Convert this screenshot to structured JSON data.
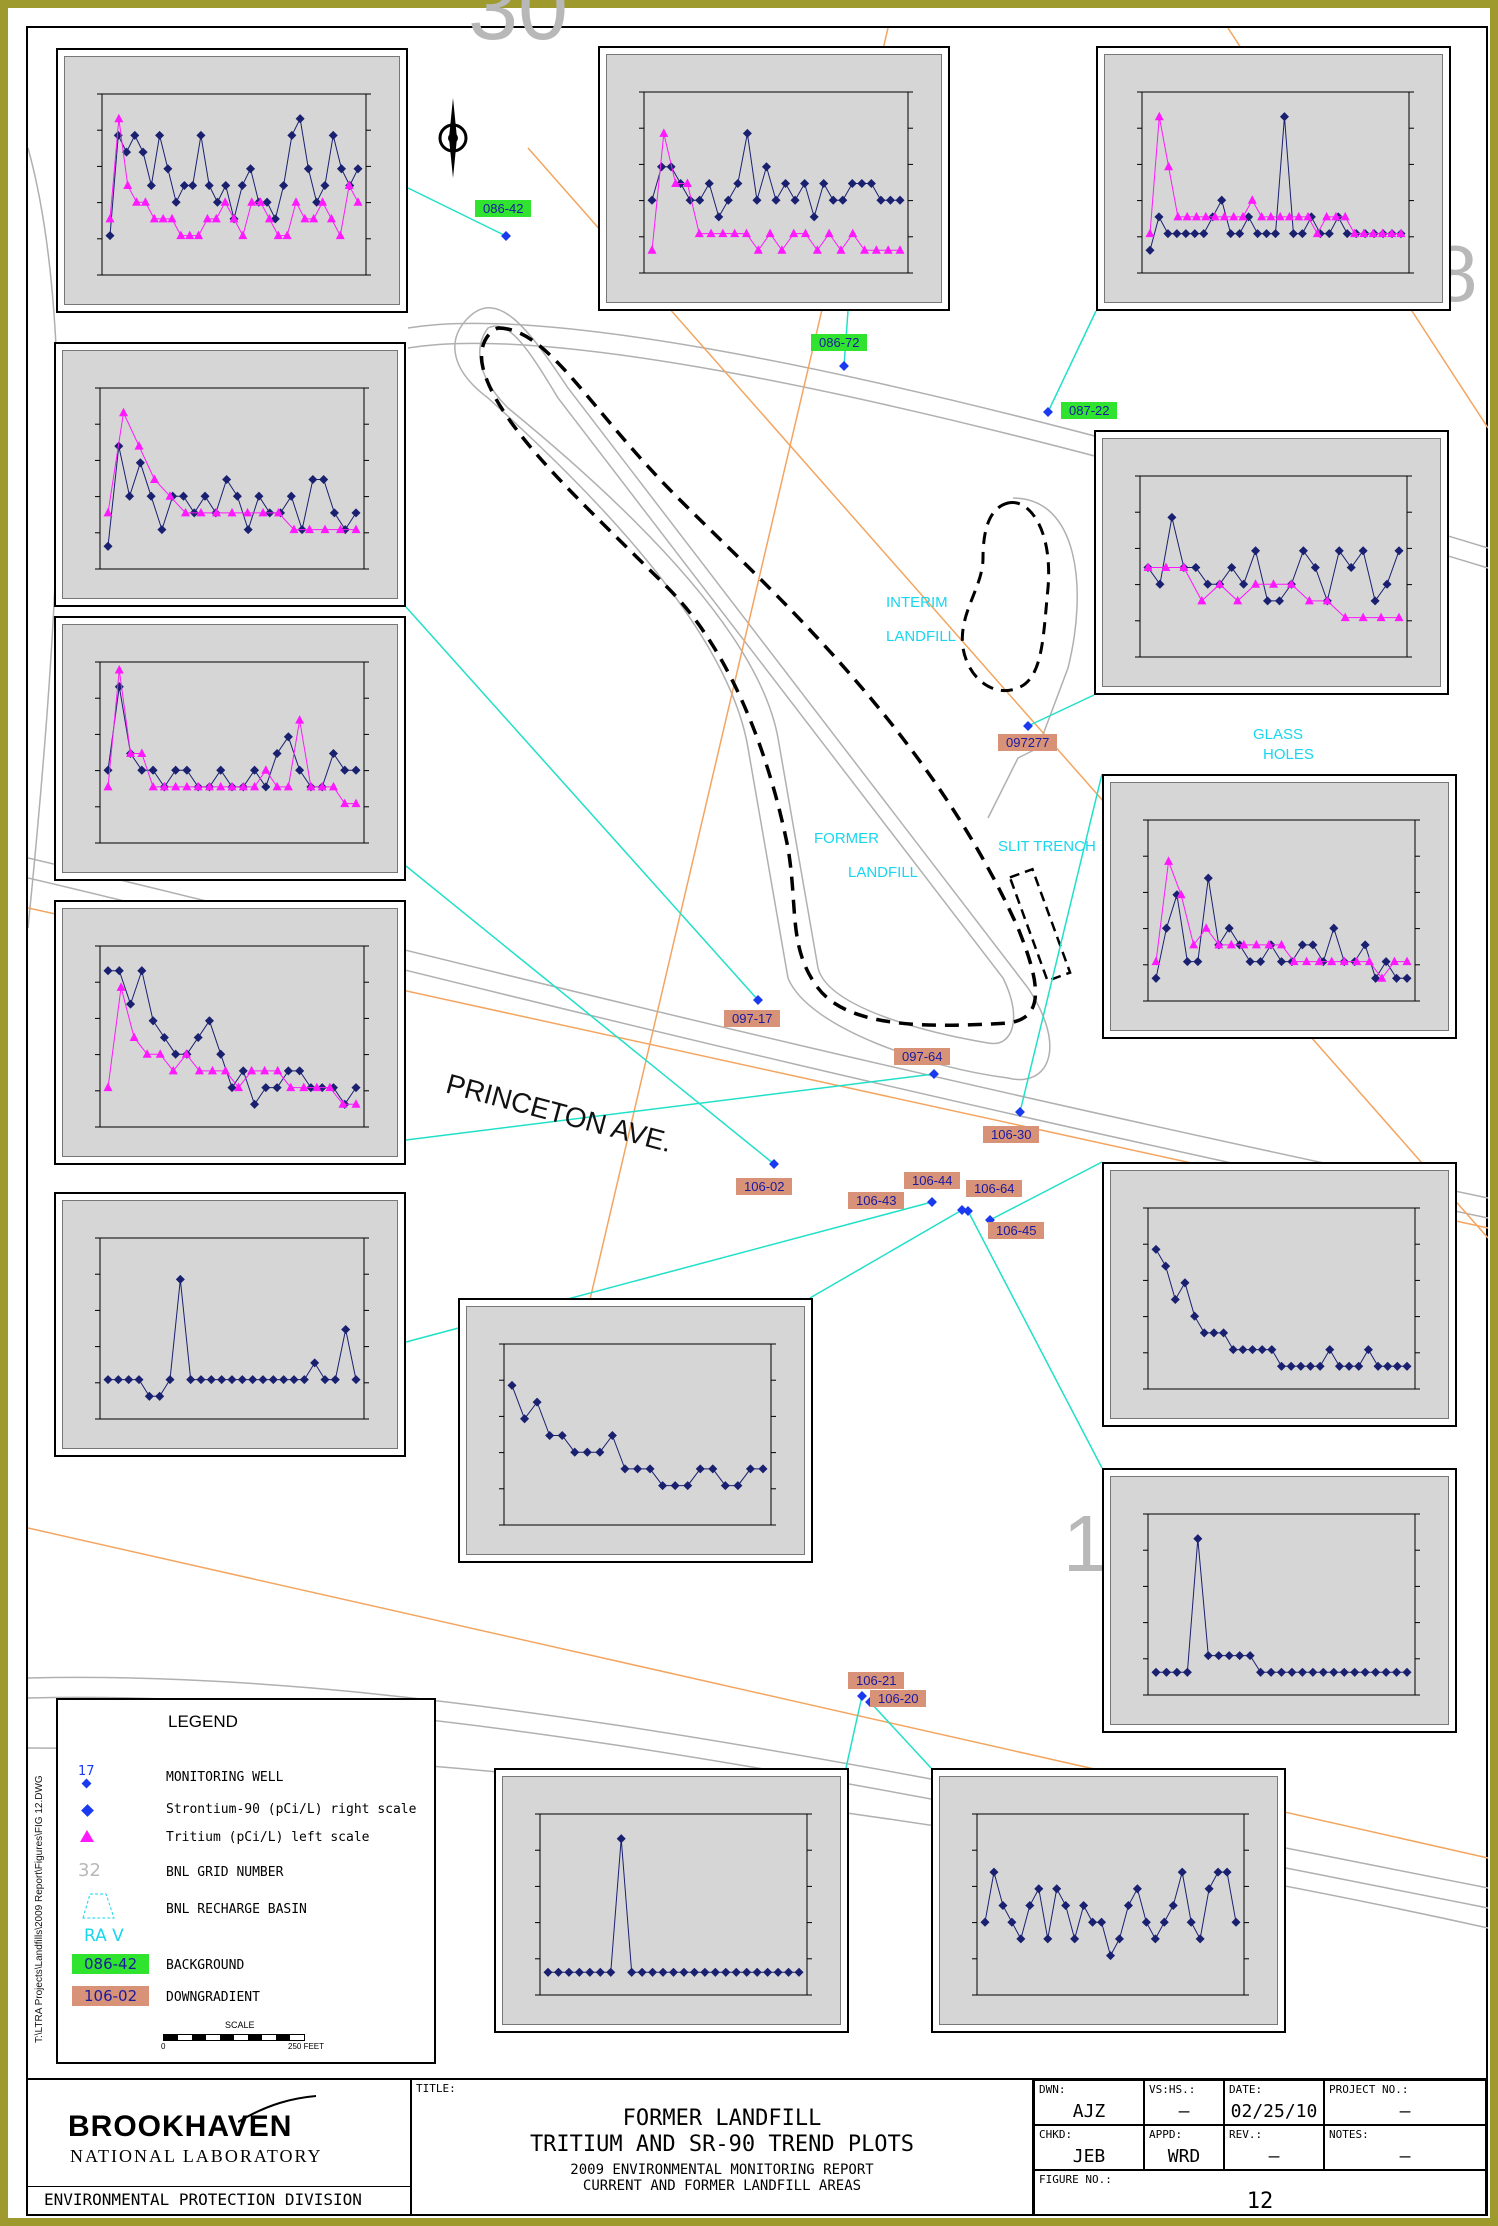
{
  "colors": {
    "frame": "#9e9a2e",
    "background_tag": "#2fe32f",
    "downgradient_tag": "#d79278",
    "sr90": "#1a2070",
    "tritium": "#ff19ff",
    "cyan_line": "#20e0c8",
    "orange_line": "#f3a560",
    "road": "#b0b0b0",
    "label_cyan": "#19d6ee"
  },
  "map_labels": {
    "street": "PRINCETON AVE.",
    "interim_landfill_1": "INTERIM",
    "interim_landfill_2": "LANDFILL",
    "former_landfill_1": "FORMER",
    "former_landfill_2": "LANDFILL",
    "slit_trench": "SLIT TRENCH",
    "glass_holes_1": "GLASS",
    "glass_holes_2": "HOLES",
    "grid_number": "1",
    "grid_top": "30",
    "grid_right": "8"
  },
  "wells": [
    {
      "id": "086-42",
      "type": "background"
    },
    {
      "id": "086-72",
      "type": "background"
    },
    {
      "id": "087-22",
      "type": "background"
    },
    {
      "id": "097277",
      "type": "downgradient"
    },
    {
      "id": "097-17",
      "type": "downgradient"
    },
    {
      "id": "097-64",
      "type": "downgradient"
    },
    {
      "id": "106-30",
      "type": "downgradient"
    },
    {
      "id": "106-02",
      "type": "downgradient"
    },
    {
      "id": "106-44",
      "type": "downgradient"
    },
    {
      "id": "106-64",
      "type": "downgradient"
    },
    {
      "id": "106-43",
      "type": "downgradient"
    },
    {
      "id": "106-45",
      "type": "downgradient"
    },
    {
      "id": "106-21",
      "type": "downgradient"
    },
    {
      "id": "106-20",
      "type": "downgradient"
    }
  ],
  "legend": {
    "title": "LEGEND",
    "monitoring_well_num": "17",
    "monitoring_well": "MONITORING WELL",
    "sr90": "Strontium-90 (pCi/L) right scale",
    "tritium": "Tritium (pCi/L) left scale",
    "grid_num": "32",
    "grid": "BNL GRID NUMBER",
    "basin": "BNL RECHARGE BASIN",
    "basin_code": "RA V",
    "background_code": "086-42",
    "background": "BACKGROUND",
    "downgradient_code": "106-02",
    "downgradient": "DOWNGRADIENT",
    "scale": "SCALE",
    "scale_0": "0",
    "scale_250": "250 FEET"
  },
  "file_path": "T:\\LTRA Projects\\Landfills\\2009 Report\\Figures\\FIG 12.DWG",
  "title_block": {
    "org_1": "BROOKHAVEN",
    "org_2": "NATIONAL LABORATORY",
    "division": "ENVIRONMENTAL PROTECTION DIVISION",
    "title_label": "TITLE:",
    "title_1": "FORMER LANDFILL",
    "title_2": "TRITIUM AND SR-90 TREND PLOTS",
    "sub_1": "2009 ENVIRONMENTAL MONITORING REPORT",
    "sub_2": "CURRENT AND FORMER LANDFILL AREAS",
    "dwn_label": "DWN:",
    "dwn": "AJZ",
    "vs_label": "VS:HS.:",
    "vs": "–",
    "date_label": "DATE:",
    "date": "02/25/10",
    "proj_label": "PROJECT NO.:",
    "proj": "–",
    "chkd_label": "CHKD:",
    "chkd": "JEB",
    "appd_label": "APPD:",
    "appd": "WRD",
    "rev_label": "REV.:",
    "rev": "–",
    "notes_label": "NOTES:",
    "notes": "–",
    "fig_label": "FIGURE NO.:",
    "fig": "12"
  },
  "chart_data": [
    {
      "type": "line",
      "well": "086-42",
      "series": [
        {
          "name": "Strontium-90 (pCi/L) right scale",
          "values": [
            2,
            8,
            7,
            8,
            7,
            5,
            8,
            6,
            4,
            5,
            5,
            8,
            5,
            4,
            5,
            3,
            5,
            6,
            4,
            4,
            3,
            5,
            8,
            9,
            6,
            4,
            5,
            8,
            6,
            5,
            6
          ]
        },
        {
          "name": "Tritium (pCi/L) left scale",
          "values": [
            3,
            9,
            5,
            4,
            4,
            3,
            3,
            3,
            2,
            2,
            2,
            3,
            3,
            4,
            3,
            2,
            4,
            4,
            3,
            2,
            2,
            4,
            3,
            3,
            4,
            3,
            2,
            5,
            4
          ]
        }
      ]
    },
    {
      "type": "line",
      "well": "086-72",
      "series": [
        {
          "name": "Strontium-90 (pCi/L) right scale",
          "values": [
            4,
            6,
            6,
            5,
            4,
            4,
            5,
            3,
            4,
            5,
            8,
            4,
            6,
            4,
            5,
            4,
            5,
            3,
            5,
            4,
            4,
            5,
            5,
            5,
            4,
            4,
            4
          ]
        },
        {
          "name": "Tritium (pCi/L) left scale",
          "values": [
            1,
            8,
            5,
            5,
            2,
            2,
            2,
            2,
            2,
            1,
            2,
            1,
            2,
            2,
            1,
            2,
            1,
            2,
            1,
            1,
            1,
            1
          ]
        }
      ]
    },
    {
      "type": "line",
      "well": "087-22",
      "series": [
        {
          "name": "Strontium-90 (pCi/L) right scale",
          "values": [
            1,
            3,
            2,
            2,
            2,
            2,
            2,
            3,
            4,
            2,
            2,
            3,
            2,
            2,
            2,
            9,
            2,
            2,
            3,
            2,
            2,
            3,
            2,
            2,
            2,
            2,
            2,
            2,
            2
          ]
        },
        {
          "name": "Tritium (pCi/L) left scale",
          "values": [
            2,
            9,
            6,
            3,
            3,
            3,
            3,
            3,
            3,
            3,
            3,
            4,
            3,
            3,
            3,
            3,
            3,
            3,
            2,
            3,
            3,
            3,
            2,
            2,
            2,
            2,
            2,
            2
          ]
        }
      ]
    },
    {
      "type": "line",
      "well": "097277",
      "series": [
        {
          "name": "Strontium-90 (pCi/L) right scale",
          "values": [
            5,
            4,
            8,
            5,
            5,
            4,
            4,
            5,
            4,
            6,
            3,
            3,
            4,
            6,
            5,
            3,
            6,
            5,
            6,
            3,
            4,
            6
          ]
        },
        {
          "name": "Tritium (pCi/L) left scale",
          "values": [
            5,
            5,
            5,
            3,
            4,
            3,
            4,
            4,
            4,
            3,
            3,
            2,
            2,
            2,
            2
          ]
        }
      ]
    },
    {
      "type": "line",
      "well": "097-17",
      "series": [
        {
          "name": "Strontium-90 (pCi/L) right scale",
          "values": [
            1,
            7,
            4,
            6,
            4,
            2,
            4,
            4,
            3,
            4,
            3,
            5,
            4,
            2,
            4,
            3,
            3,
            4,
            2,
            5,
            5,
            3,
            2,
            3
          ]
        },
        {
          "name": "Tritium (pCi/L) left scale",
          "values": [
            3,
            9,
            7,
            5,
            4,
            3,
            3,
            3,
            3,
            3,
            3,
            3,
            2,
            2,
            2,
            2,
            2
          ]
        }
      ]
    },
    {
      "type": "line",
      "well": "106-30",
      "series": [
        {
          "name": "Strontium-90 (pCi/L) right scale",
          "values": [
            1,
            4,
            6,
            2,
            2,
            7,
            3,
            4,
            3,
            2,
            2,
            3,
            2,
            2,
            3,
            3,
            2,
            4,
            2,
            2,
            3,
            1,
            2,
            1,
            1
          ]
        },
        {
          "name": "Tritium (pCi/L) left scale",
          "values": [
            2,
            8,
            6,
            3,
            4,
            3,
            3,
            3,
            3,
            3,
            3,
            2,
            2,
            2,
            2,
            2,
            2,
            2,
            1,
            2,
            2
          ]
        }
      ]
    },
    {
      "type": "line",
      "well": "106-02",
      "series": [
        {
          "name": "Strontium-90 (pCi/L) right scale",
          "values": [
            4,
            9,
            5,
            4,
            4,
            3,
            4,
            4,
            3,
            3,
            4,
            3,
            3,
            4,
            3,
            5,
            6,
            4,
            3,
            3,
            5,
            4,
            4
          ]
        },
        {
          "name": "Tritium (pCi/L) left scale",
          "values": [
            3,
            10,
            5,
            5,
            3,
            3,
            3,
            3,
            3,
            3,
            3,
            3,
            3,
            3,
            4,
            3,
            3,
            7,
            3,
            3,
            3,
            2,
            2
          ]
        }
      ]
    },
    {
      "type": "line",
      "well": "097-64",
      "series": [
        {
          "name": "Strontium-90 (pCi/L) right scale",
          "values": [
            9,
            9,
            7,
            9,
            6,
            5,
            4,
            4,
            5,
            6,
            4,
            2,
            3,
            1,
            2,
            2,
            3,
            3,
            2,
            2,
            2,
            1,
            2
          ]
        },
        {
          "name": "Tritium (pCi/L) left scale",
          "values": [
            2,
            8,
            5,
            4,
            4,
            3,
            4,
            3,
            3,
            3,
            2,
            3,
            3,
            3,
            2,
            2,
            2,
            2,
            1,
            1
          ]
        }
      ]
    },
    {
      "type": "line",
      "well": "106-45",
      "series": [
        {
          "name": "Strontium-90 (pCi/L) right scale",
          "values": [
            8,
            7,
            5,
            6,
            4,
            3,
            3,
            3,
            2,
            2,
            2,
            2,
            2,
            1,
            1,
            1,
            1,
            1,
            2,
            1,
            1,
            1,
            2,
            1,
            1,
            1,
            1
          ]
        }
      ]
    },
    {
      "type": "line",
      "well": "106-43",
      "series": [
        {
          "name": "Strontium-90 (pCi/L) right scale",
          "values": [
            2,
            2,
            2,
            2,
            1,
            1,
            2,
            8,
            2,
            2,
            2,
            2,
            2,
            2,
            2,
            2,
            2,
            2,
            2,
            2,
            3,
            2,
            2,
            5,
            2
          ]
        }
      ]
    },
    {
      "type": "line",
      "well": "106-44",
      "series": [
        {
          "name": "Strontium-90 (pCi/L) right scale",
          "values": [
            8,
            6,
            7,
            5,
            5,
            4,
            4,
            4,
            5,
            3,
            3,
            3,
            2,
            2,
            2,
            3,
            3,
            2,
            2,
            3,
            3
          ]
        }
      ]
    },
    {
      "type": "line",
      "well": "106-64",
      "series": [
        {
          "name": "Strontium-90 (pCi/L) right scale",
          "values": [
            1,
            1,
            1,
            1,
            9,
            2,
            2,
            2,
            2,
            2,
            1,
            1,
            1,
            1,
            1,
            1,
            1,
            1,
            1,
            1,
            1,
            1,
            1,
            1,
            1
          ]
        }
      ]
    },
    {
      "type": "line",
      "well": "106-21",
      "series": [
        {
          "name": "Strontium-90 (pCi/L) right scale",
          "values": [
            1,
            1,
            1,
            1,
            1,
            1,
            1,
            9,
            1,
            1,
            1,
            1,
            1,
            1,
            1,
            1,
            1,
            1,
            1,
            1,
            1,
            1,
            1,
            1,
            1
          ]
        }
      ]
    },
    {
      "type": "line",
      "well": "106-20",
      "series": [
        {
          "name": "Strontium-90 (pCi/L) right scale",
          "values": [
            4,
            7,
            5,
            4,
            3,
            5,
            6,
            3,
            6,
            5,
            3,
            5,
            4,
            4,
            2,
            3,
            5,
            6,
            4,
            3,
            4,
            5,
            7,
            4,
            3,
            6,
            7,
            7,
            4
          ]
        }
      ]
    }
  ]
}
